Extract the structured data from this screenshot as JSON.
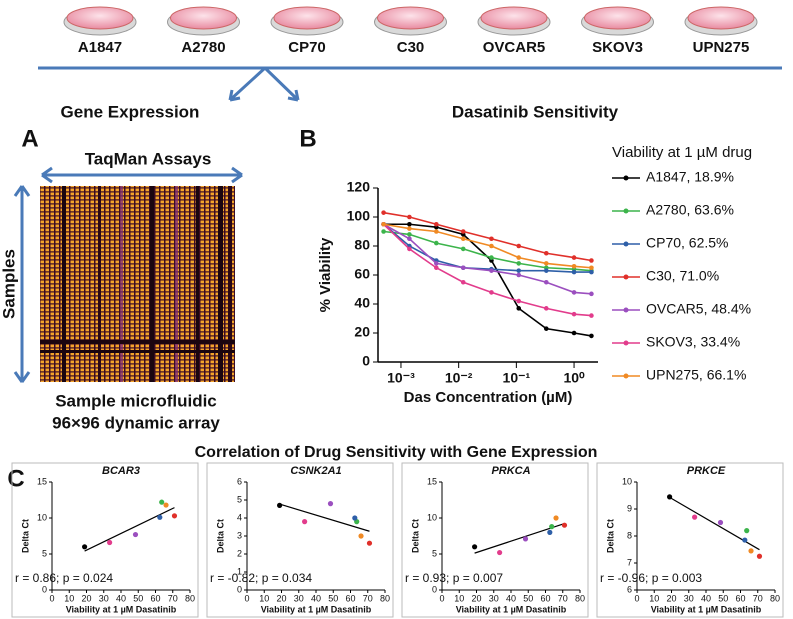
{
  "cell_lines": [
    "A1847",
    "A2780",
    "CP70",
    "C30",
    "OVCAR5",
    "SKOV3",
    "UPN275"
  ],
  "headings": {
    "gene_expression": "Gene Expression",
    "dasatinib": "Dasatinib Sensitivity",
    "correlation": "Correlation of Drug Sensitivity with Gene Expression"
  },
  "panel_letters": [
    "A",
    "B",
    "C"
  ],
  "panel_a": {
    "columns": "TaqMan Assays",
    "rows": "Samples",
    "caption": [
      "Sample microfluidic",
      "96×96 dynamic array"
    ]
  },
  "chart_data": [
    {
      "type": "line",
      "xscale": "log",
      "ylabel": "% Viability",
      "xlabel": "Das Concentration (µM)",
      "legend_title": "Viability at 1 µM drug",
      "x": [
        0.0005,
        0.0014,
        0.0041,
        0.012,
        0.037,
        0.11,
        0.33,
        1,
        2
      ],
      "xlim": [
        0.0004,
        2.6
      ],
      "xticks": [
        {
          "value": 0.001,
          "label": "10⁻³"
        },
        {
          "value": 0.01,
          "label": "10⁻²"
        },
        {
          "value": 0.1,
          "label": "10⁻¹"
        },
        {
          "value": 1,
          "label": "10⁰"
        }
      ],
      "ylim": [
        0,
        120
      ],
      "yticks": [
        0,
        20,
        40,
        60,
        80,
        100,
        120
      ],
      "series": [
        {
          "name": "A1847, 18.9%",
          "color": "#000000",
          "values": [
            95,
            95,
            93,
            88,
            70,
            37,
            23,
            20,
            18
          ]
        },
        {
          "name": "A2780, 63.6%",
          "color": "#3cb44b",
          "values": [
            90,
            88,
            82,
            78,
            72,
            68,
            65,
            64,
            63
          ]
        },
        {
          "name": "CP70, 62.5%",
          "color": "#2e5fa8",
          "values": [
            95,
            80,
            70,
            65,
            64,
            63,
            63,
            62,
            62
          ]
        },
        {
          "name": "C30, 71.0%",
          "color": "#e0302a",
          "values": [
            103,
            100,
            95,
            90,
            85,
            80,
            75,
            72,
            70
          ]
        },
        {
          "name": "OVCAR5, 48.4%",
          "color": "#9b4fbf",
          "values": [
            95,
            85,
            68,
            65,
            63,
            60,
            55,
            48,
            47
          ]
        },
        {
          "name": "SKOV3, 33.4%",
          "color": "#e23c8c",
          "values": [
            95,
            78,
            65,
            55,
            48,
            42,
            37,
            33,
            32
          ]
        },
        {
          "name": "UPN275, 66.1%",
          "color": "#f08a24",
          "values": [
            95,
            92,
            90,
            85,
            80,
            72,
            68,
            66,
            65
          ]
        }
      ]
    },
    {
      "type": "scatter",
      "title": "BCAR3",
      "annotation": "r = 0.86; p = 0.024",
      "xlabel": "Viability at 1 µM Dasatinib",
      "ylabel": "Delta Ct",
      "x": [
        18.9,
        63.6,
        62.5,
        71.0,
        48.4,
        33.4,
        66.1
      ],
      "values": [
        6.0,
        12.2,
        10.1,
        10.3,
        7.7,
        6.6,
        11.8
      ],
      "colors": [
        "#000000",
        "#3cb44b",
        "#2e5fa8",
        "#e0302a",
        "#9b4fbf",
        "#e23c8c",
        "#f08a24"
      ],
      "xlim": [
        0,
        80
      ],
      "xticks": [
        0,
        10,
        20,
        30,
        40,
        50,
        60,
        70,
        80
      ],
      "ylim": [
        0,
        15
      ],
      "yticks": [
        0,
        5,
        10,
        15
      ]
    },
    {
      "type": "scatter",
      "title": "CSNK2A1",
      "annotation": "r = -0.82; p = 0.034",
      "xlabel": "Viability at 1 µM Dasatinib",
      "ylabel": "Delta Ct",
      "x": [
        18.9,
        63.6,
        62.5,
        71.0,
        48.4,
        33.4,
        66.1
      ],
      "values": [
        4.7,
        3.8,
        4.0,
        2.6,
        4.8,
        3.8,
        3.0
      ],
      "colors": [
        "#000000",
        "#3cb44b",
        "#2e5fa8",
        "#e0302a",
        "#9b4fbf",
        "#e23c8c",
        "#f08a24"
      ],
      "xlim": [
        0,
        80
      ],
      "xticks": [
        0,
        10,
        20,
        30,
        40,
        50,
        60,
        70,
        80
      ],
      "ylim": [
        0,
        6
      ],
      "yticks": [
        0,
        1,
        2,
        3,
        4,
        5,
        6
      ]
    },
    {
      "type": "scatter",
      "title": "PRKCA",
      "annotation": "r = 0.93; p = 0.007",
      "xlabel": "Viability at 1 µM Dasatinib",
      "ylabel": "Delta Ct",
      "x": [
        18.9,
        63.6,
        62.5,
        71.0,
        48.4,
        33.4,
        66.1
      ],
      "values": [
        6.0,
        8.8,
        8.0,
        9.0,
        7.1,
        5.2,
        10.0
      ],
      "colors": [
        "#000000",
        "#3cb44b",
        "#2e5fa8",
        "#e0302a",
        "#9b4fbf",
        "#e23c8c",
        "#f08a24"
      ],
      "xlim": [
        0,
        80
      ],
      "xticks": [
        0,
        10,
        20,
        30,
        40,
        50,
        60,
        70,
        80
      ],
      "ylim": [
        0,
        15
      ],
      "yticks": [
        0,
        5,
        10,
        15
      ]
    },
    {
      "type": "scatter",
      "title": "PRKCE",
      "annotation": "r = -0.96; p = 0.003",
      "xlabel": "Viability at 1 µM Dasatinib",
      "ylabel": "Delta Ct",
      "x": [
        18.9,
        63.6,
        62.5,
        71.0,
        48.4,
        33.4,
        66.1
      ],
      "values": [
        9.45,
        8.2,
        7.85,
        7.25,
        8.5,
        8.7,
        7.45
      ],
      "colors": [
        "#000000",
        "#3cb44b",
        "#2e5fa8",
        "#e0302a",
        "#9b4fbf",
        "#e23c8c",
        "#f08a24"
      ],
      "xlim": [
        0,
        80
      ],
      "xticks": [
        0,
        10,
        20,
        30,
        40,
        50,
        60,
        70,
        80
      ],
      "ylim": [
        6,
        10
      ],
      "yticks": [
        6,
        7,
        8,
        9,
        10
      ]
    }
  ]
}
